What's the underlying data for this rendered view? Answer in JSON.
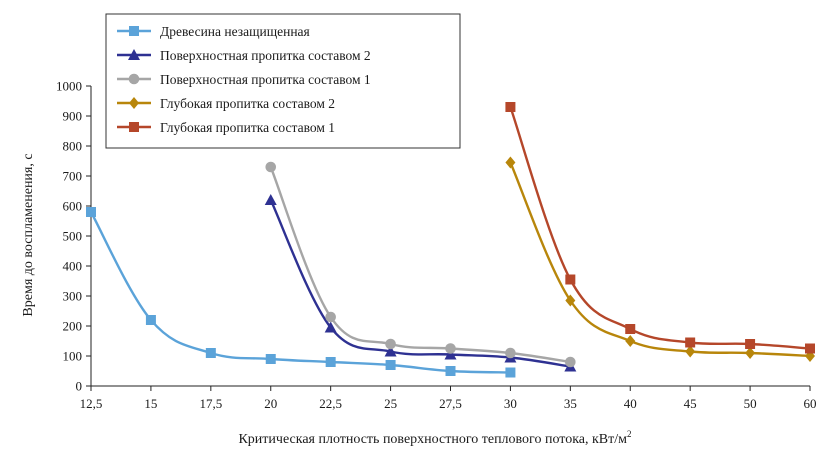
{
  "chart_data": {
    "type": "line",
    "xlabel": "Критическая плотность поверхностного теплового потока, кВт/м",
    "xlabel_sup": "2",
    "ylabel": "Время до воспламенения, с",
    "x_categories": [
      "12,5",
      "15",
      "17,5",
      "20",
      "22,5",
      "25",
      "27,5",
      "30",
      "35",
      "40",
      "45",
      "50",
      "60"
    ],
    "ylim": [
      0,
      1000
    ],
    "y_ticks": [
      "0",
      "100",
      "200",
      "300",
      "400",
      "500",
      "600",
      "700",
      "800",
      "900",
      "1000"
    ],
    "grid": false,
    "legend_position": "top-left",
    "series": [
      {
        "name": "Древесина незащищенная",
        "color": "#5ba3d9",
        "marker": "square",
        "x": [
          "12,5",
          "15",
          "17,5",
          "20",
          "22,5",
          "25",
          "27,5",
          "30"
        ],
        "values": [
          580,
          220,
          110,
          90,
          80,
          70,
          50,
          45
        ]
      },
      {
        "name": "Поверхностная пропитка составом 2",
        "color": "#2e3192",
        "marker": "triangle",
        "x": [
          "20",
          "22,5",
          "25",
          "27,5",
          "30",
          "35"
        ],
        "values": [
          620,
          195,
          115,
          105,
          95,
          65
        ]
      },
      {
        "name": "Поверхностная пропитка составом 1",
        "color": "#a6a6a6",
        "marker": "circle",
        "x": [
          "20",
          "22,5",
          "25",
          "27,5",
          "30",
          "35"
        ],
        "values": [
          730,
          230,
          140,
          125,
          110,
          80
        ]
      },
      {
        "name": "Глубокая пропитка составом 2",
        "color": "#b8860b",
        "marker": "diamond",
        "x": [
          "30",
          "35",
          "40",
          "45",
          "50",
          "60"
        ],
        "values": [
          745,
          285,
          150,
          115,
          110,
          100
        ]
      },
      {
        "name": "Глубокая пропитка составом 1",
        "color": "#b5472a",
        "marker": "square",
        "x": [
          "30",
          "35",
          "40",
          "45",
          "50",
          "60"
        ],
        "values": [
          930,
          355,
          190,
          145,
          140,
          125
        ]
      }
    ]
  }
}
